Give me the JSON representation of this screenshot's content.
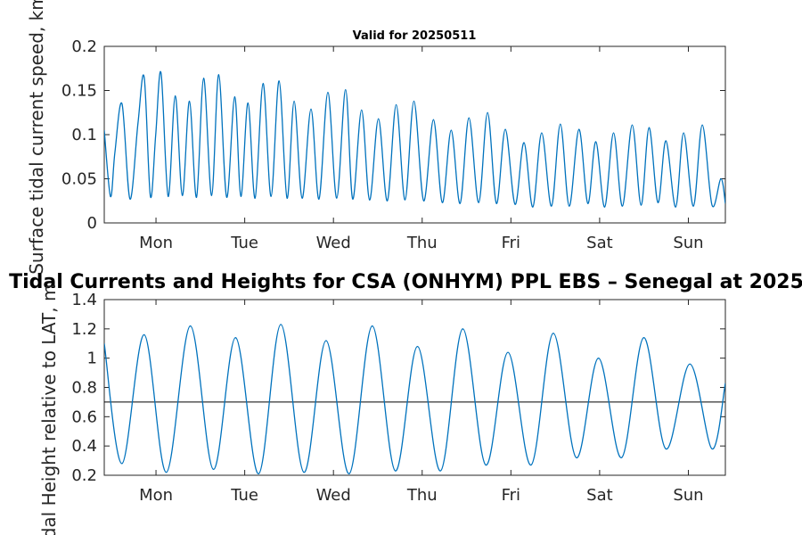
{
  "chart_data": [
    {
      "type": "line",
      "title": "Valid for 20250511",
      "ylabel": "Surface tidal current speed, km",
      "xlabel": "",
      "xlim": [
        0,
        7
      ],
      "ylim": [
        0,
        0.2
      ],
      "yticks": [
        "0",
        "0.05",
        "0.1",
        "0.15",
        "0.2"
      ],
      "xticks": [
        {
          "pos": 0.583,
          "label": "Mon"
        },
        {
          "pos": 1.583,
          "label": "Tue"
        },
        {
          "pos": 2.583,
          "label": "Wed"
        },
        {
          "pos": 3.583,
          "label": "Thu"
        },
        {
          "pos": 4.583,
          "label": "Fri"
        },
        {
          "pos": 5.583,
          "label": "Sat"
        },
        {
          "pos": 6.583,
          "label": "Sun"
        }
      ],
      "series": [
        {
          "color": "#0072BD",
          "x": [
            0.0,
            0.07,
            0.12,
            0.2,
            0.29,
            0.38,
            0.45,
            0.52,
            0.58,
            0.64,
            0.72,
            0.8,
            0.88,
            0.96,
            1.04,
            1.12,
            1.21,
            1.29,
            1.38,
            1.47,
            1.54,
            1.62,
            1.7,
            1.79,
            1.88,
            1.97,
            2.06,
            2.14,
            2.23,
            2.33,
            2.42,
            2.52,
            2.62,
            2.72,
            2.8,
            2.9,
            2.99,
            3.09,
            3.19,
            3.29,
            3.39,
            3.49,
            3.6,
            3.71,
            3.81,
            3.91,
            4.01,
            4.11,
            4.22,
            4.32,
            4.42,
            4.52,
            4.63,
            4.73,
            4.83,
            4.93,
            5.04,
            5.14,
            5.24,
            5.35,
            5.45,
            5.54,
            5.64,
            5.74,
            5.84,
            5.95,
            6.05,
            6.14,
            6.24,
            6.33,
            6.44,
            6.53,
            6.64,
            6.74,
            6.85,
            6.95,
            7.0
          ],
          "y": [
            0.105,
            0.03,
            0.08,
            0.135,
            0.027,
            0.113,
            0.165,
            0.03,
            0.1,
            0.17,
            0.03,
            0.144,
            0.031,
            0.138,
            0.029,
            0.164,
            0.031,
            0.168,
            0.029,
            0.143,
            0.03,
            0.136,
            0.028,
            0.158,
            0.03,
            0.161,
            0.028,
            0.138,
            0.028,
            0.129,
            0.027,
            0.148,
            0.028,
            0.151,
            0.027,
            0.128,
            0.026,
            0.118,
            0.025,
            0.134,
            0.026,
            0.138,
            0.025,
            0.117,
            0.023,
            0.105,
            0.022,
            0.119,
            0.023,
            0.125,
            0.022,
            0.106,
            0.021,
            0.091,
            0.018,
            0.102,
            0.019,
            0.112,
            0.019,
            0.106,
            0.022,
            0.092,
            0.018,
            0.102,
            0.019,
            0.111,
            0.02,
            0.108,
            0.023,
            0.093,
            0.018,
            0.102,
            0.019,
            0.111,
            0.02,
            0.05,
            0.022
          ]
        }
      ]
    },
    {
      "type": "line",
      "title": "Tidal Currents and Heights for CSA (ONHYM) PPL EBS  – Senegal at 2025",
      "ylabel": "Tidal Height relative to LAT, m",
      "xlabel": "",
      "xlim": [
        0,
        7
      ],
      "ylim": [
        0.2,
        1.4
      ],
      "yticks": [
        "0.2",
        "0.4",
        "0.6",
        "0.8",
        "1",
        "1.2",
        "1.4"
      ],
      "xticks": [
        {
          "pos": 0.583,
          "label": "Mon"
        },
        {
          "pos": 1.583,
          "label": "Tue"
        },
        {
          "pos": 2.583,
          "label": "Wed"
        },
        {
          "pos": 3.583,
          "label": "Thu"
        },
        {
          "pos": 4.583,
          "label": "Fri"
        },
        {
          "pos": 5.583,
          "label": "Sat"
        },
        {
          "pos": 6.583,
          "label": "Sun"
        }
      ],
      "reference_line": 0.7,
      "series": [
        {
          "color": "#0072BD",
          "x": [
            0.0,
            0.2,
            0.45,
            0.7,
            0.97,
            1.23,
            1.48,
            1.74,
            1.99,
            2.25,
            2.5,
            2.76,
            3.02,
            3.28,
            3.53,
            3.79,
            4.04,
            4.3,
            4.55,
            4.81,
            5.06,
            5.32,
            5.57,
            5.83,
            6.08,
            6.33,
            6.6,
            6.85,
            7.0
          ],
          "y": [
            1.1,
            0.28,
            1.16,
            0.22,
            1.22,
            0.24,
            1.14,
            0.21,
            1.23,
            0.22,
            1.12,
            0.21,
            1.22,
            0.23,
            1.08,
            0.23,
            1.2,
            0.27,
            1.04,
            0.27,
            1.17,
            0.32,
            1.0,
            0.32,
            1.14,
            0.38,
            0.96,
            0.38,
            0.83
          ]
        }
      ]
    }
  ]
}
